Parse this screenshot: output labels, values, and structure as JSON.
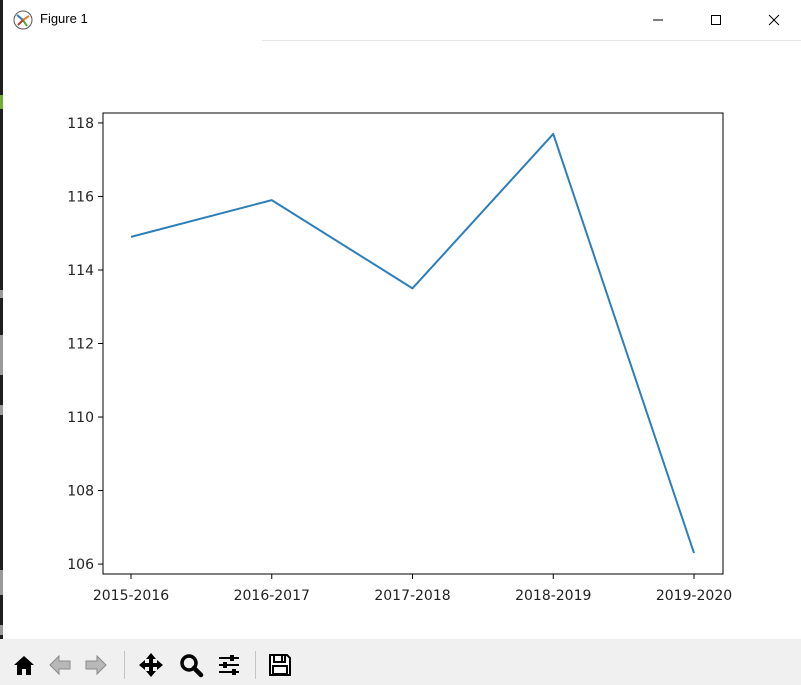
{
  "window": {
    "title": "Figure 1"
  },
  "colors": {
    "line": "#2d7fb8",
    "axes": "#000000",
    "text": "#222222",
    "toolbar_bg": "#f0f0f0"
  },
  "toolbar": {
    "buttons": [
      {
        "name": "home",
        "icon": "home-icon"
      },
      {
        "name": "back",
        "icon": "arrow-left-icon"
      },
      {
        "name": "forward",
        "icon": "arrow-right-icon"
      },
      {
        "name": "pan",
        "icon": "move-icon"
      },
      {
        "name": "zoom",
        "icon": "magnifier-icon"
      },
      {
        "name": "configure-subplots",
        "icon": "sliders-icon"
      },
      {
        "name": "save",
        "icon": "floppy-disk-icon"
      }
    ]
  },
  "chart_data": {
    "type": "line",
    "categories": [
      "2015-2016",
      "2016-2017",
      "2017-2018",
      "2018-2019",
      "2019-2020"
    ],
    "values": [
      114.9,
      115.9,
      113.5,
      117.7,
      106.3
    ],
    "title": "",
    "xlabel": "",
    "ylabel": "",
    "ylim": [
      105.73,
      118.27
    ],
    "yticks": [
      106,
      108,
      110,
      112,
      114,
      116,
      118
    ],
    "grid": false
  }
}
